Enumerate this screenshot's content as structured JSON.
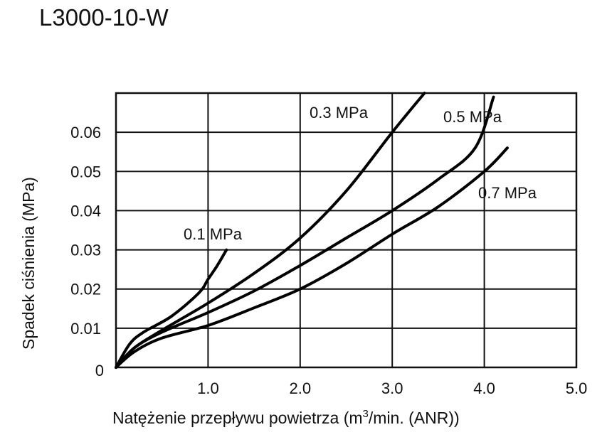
{
  "chart_data": {
    "type": "line",
    "title": "L3000-10-W",
    "xlabel": "Natężenie przepływu powietrza (m³/min. (ANR))",
    "xlabel_parts": {
      "before": "Natężenie przepływu powietrza (m",
      "sup": "3",
      "after": "/min. (ANR))"
    },
    "ylabel": "Spadek ciśnienia (MPa)",
    "xlim": [
      0,
      5.0
    ],
    "ylim": [
      0,
      0.07
    ],
    "xticks": [
      "1.0",
      "2.0",
      "3.0",
      "4.0",
      "5.0"
    ],
    "xtick_values": [
      1,
      2,
      3,
      4,
      5
    ],
    "yticks": [
      "0",
      "0.01",
      "0.02",
      "0.03",
      "0.04",
      "0.05",
      "0.06"
    ],
    "ytick_values": [
      0,
      0.01,
      0.02,
      0.03,
      0.04,
      0.05,
      0.06
    ],
    "grid": true,
    "series": [
      {
        "name": "0.1 MPa",
        "x": [
          0,
          0.15,
          0.3,
          0.6,
          0.9,
          1.0,
          1.1,
          1.2
        ],
        "y": [
          0,
          0.006,
          0.009,
          0.013,
          0.019,
          0.0225,
          0.026,
          0.03
        ]
      },
      {
        "name": "0.3 MPa",
        "x": [
          0,
          0.2,
          0.5,
          1.0,
          1.5,
          2.0,
          2.5,
          3.0,
          3.35
        ],
        "y": [
          0,
          0.005,
          0.0095,
          0.0164,
          0.024,
          0.033,
          0.045,
          0.06,
          0.07
        ]
      },
      {
        "name": "0.5 MPa",
        "x": [
          0,
          0.2,
          0.5,
          1.0,
          1.5,
          2.0,
          2.5,
          3.0,
          3.5,
          3.9,
          4.1
        ],
        "y": [
          0,
          0.005,
          0.009,
          0.014,
          0.0195,
          0.026,
          0.033,
          0.04,
          0.048,
          0.056,
          0.069
        ]
      },
      {
        "name": "0.7 MPa",
        "x": [
          0,
          0.2,
          0.5,
          1.0,
          1.5,
          2.0,
          2.5,
          3.0,
          3.5,
          4.0,
          4.25
        ],
        "y": [
          0,
          0.004,
          0.0075,
          0.0107,
          0.0152,
          0.02,
          0.0265,
          0.034,
          0.041,
          0.05,
          0.056
        ]
      }
    ],
    "annotations": [
      "0.1 MPa",
      "0.3 MPa",
      "0.5 MPa",
      "0.7 MPa"
    ]
  }
}
